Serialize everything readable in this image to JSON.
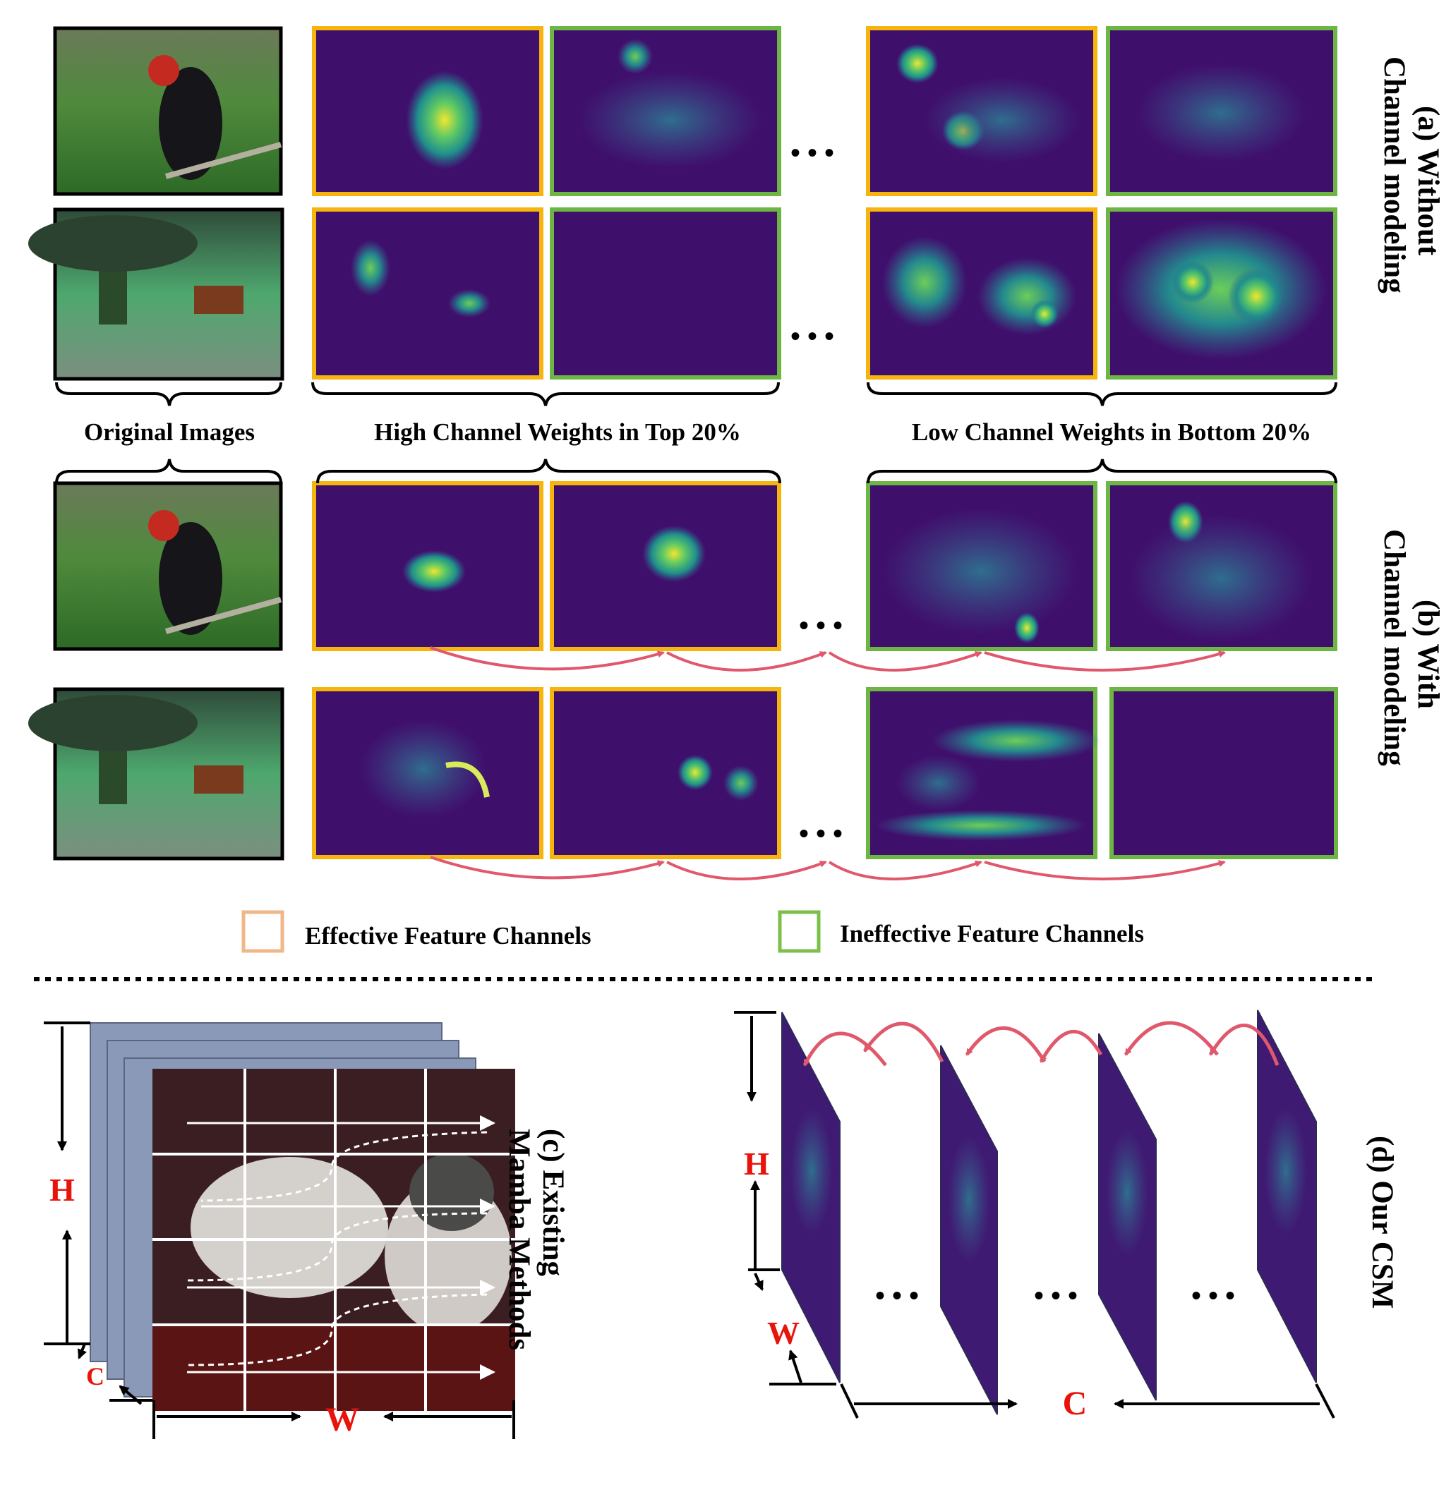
{
  "row_labels": {
    "without": "(a)  Without\nChannel modeling",
    "with": "(b) With\nChannel modeling"
  },
  "group_labels": {
    "original": "Original Images",
    "high": "High Channel Weights in Top 20%",
    "low": "Low Channel Weights in Bottom 20%"
  },
  "legend": {
    "effective": "Effective Feature Channels",
    "ineffective": "Ineffective Feature Channels"
  },
  "panel_c": {
    "title": "(c) Existing\nMamba Methods",
    "h": "H",
    "w": "W",
    "c": "C"
  },
  "panel_d": {
    "title": "(d) Our CSM",
    "h": "H",
    "w": "W",
    "c": "C"
  },
  "ellipsis": "• • •",
  "colors": {
    "effective_border": "#f6b50e",
    "ineffective_border": "#6db644",
    "legend_effective": "#f0b788",
    "legend_ineffective": "#7cbf4a",
    "arrow": "#e0586b",
    "dim_red": "#e8140c",
    "heat_bg": "#3f0f6c"
  }
}
